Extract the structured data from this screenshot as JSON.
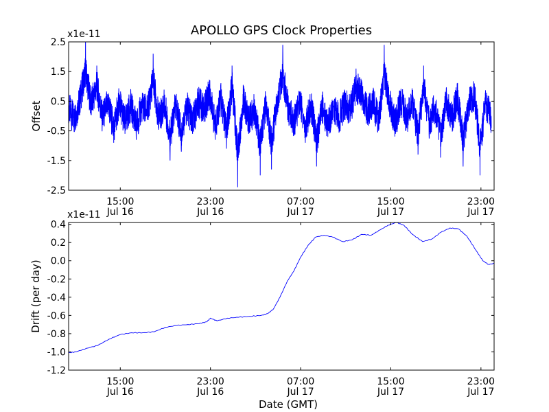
{
  "figure": {
    "title": "APOLLO GPS Clock Properties",
    "line_color": "#0000ff"
  },
  "chart_data": [
    {
      "type": "line",
      "ylabel": "Offset",
      "xlabel": "",
      "y_multiplier": "x1e-11",
      "xlim": [
        "2013-07-16 10:25",
        "2013-07-18 00:10"
      ],
      "ylim": [
        -2.5,
        2.5
      ],
      "x_ticks": [
        {
          "x": "2013-07-16 15:00",
          "time": "15:00",
          "date": "Jul 16"
        },
        {
          "x": "2013-07-16 23:00",
          "time": "23:00",
          "date": "Jul 16"
        },
        {
          "x": "2013-07-17 07:00",
          "time": "07:00",
          "date": "Jul 17"
        },
        {
          "x": "2013-07-17 15:00",
          "time": "15:00",
          "date": "Jul 17"
        },
        {
          "x": "2013-07-17 23:00",
          "time": "23:00",
          "date": "Jul 17"
        }
      ],
      "y_ticks": [
        {
          "value": -2.5,
          "label": "-2.5"
        },
        {
          "value": -1.5,
          "label": "-1.5"
        },
        {
          "value": -0.5,
          "label": "-0.5"
        },
        {
          "value": 0.5,
          "label": "0.5"
        },
        {
          "value": 1.5,
          "label": "1.5"
        },
        {
          "value": 2.5,
          "label": "2.5"
        }
      ],
      "series": [
        {
          "x": [
            "2013-07-16 10:25",
            "2013-07-16 10:55",
            "2013-07-16 11:25",
            "2013-07-16 11:55",
            "2013-07-16 12:25",
            "2013-07-16 12:55",
            "2013-07-16 13:25",
            "2013-07-16 13:55",
            "2013-07-16 14:25",
            "2013-07-16 14:55",
            "2013-07-16 15:25",
            "2013-07-16 15:55",
            "2013-07-16 16:25",
            "2013-07-16 16:55",
            "2013-07-16 17:25",
            "2013-07-16 17:55",
            "2013-07-16 18:25",
            "2013-07-16 18:55",
            "2013-07-16 19:25",
            "2013-07-16 19:55",
            "2013-07-16 20:25",
            "2013-07-16 20:55",
            "2013-07-16 21:25",
            "2013-07-16 21:55",
            "2013-07-16 22:25",
            "2013-07-16 22:55",
            "2013-07-16 23:25",
            "2013-07-16 23:55",
            "2013-07-17 00:25",
            "2013-07-17 00:55",
            "2013-07-17 01:25",
            "2013-07-17 01:55",
            "2013-07-17 02:25",
            "2013-07-17 02:55",
            "2013-07-17 03:25",
            "2013-07-17 03:55",
            "2013-07-17 04:25",
            "2013-07-17 04:55",
            "2013-07-17 05:25",
            "2013-07-17 05:55",
            "2013-07-17 06:25",
            "2013-07-17 06:55",
            "2013-07-17 07:25",
            "2013-07-17 07:55",
            "2013-07-17 08:25",
            "2013-07-17 08:55",
            "2013-07-17 09:25",
            "2013-07-17 09:55",
            "2013-07-17 10:25",
            "2013-07-17 10:55",
            "2013-07-17 11:25",
            "2013-07-17 11:55",
            "2013-07-17 12:25",
            "2013-07-17 12:55",
            "2013-07-17 13:25",
            "2013-07-17 13:55",
            "2013-07-17 14:25",
            "2013-07-17 14:55",
            "2013-07-17 15:25",
            "2013-07-17 15:55",
            "2013-07-17 16:25",
            "2013-07-17 16:55",
            "2013-07-17 17:25",
            "2013-07-17 17:55",
            "2013-07-17 18:25",
            "2013-07-17 18:55",
            "2013-07-17 19:25",
            "2013-07-17 19:55",
            "2013-07-17 20:25",
            "2013-07-17 20:55",
            "2013-07-17 21:25",
            "2013-07-17 21:55",
            "2013-07-17 22:25",
            "2013-07-17 22:55",
            "2013-07-17 23:25",
            "2013-07-17 23:55"
          ],
          "y": [
            0.3,
            -0.4,
            0.8,
            2.6,
            0.5,
            1.7,
            -0.3,
            0.6,
            -0.9,
            0.7,
            -0.6,
            0.5,
            -0.8,
            0.4,
            0.1,
            2.1,
            -0.4,
            0.6,
            -1.5,
            0.5,
            -1.2,
            0.4,
            -0.6,
            0.7,
            0.2,
            1.2,
            -0.8,
            0.9,
            -1.1,
            1.7,
            -2.4,
            0.8,
            -0.5,
            0.3,
            -2.0,
            0.6,
            -1.8,
            0.7,
            2.4,
            0.2,
            -0.6,
            0.8,
            -0.9,
            0.5,
            -1.7,
            0.4,
            -0.7,
            0.3,
            -0.3,
            0.5,
            0.2,
            1.6,
            1.2,
            0.1,
            0.7,
            -0.5,
            2.4,
            0.5,
            -0.6,
            0.8,
            -0.4,
            0.6,
            -1.3,
            1.7,
            -0.7,
            0.4,
            -1.4,
            0.8,
            -0.3,
            0.9,
            -1.7,
            0.6,
            1.1,
            -2.0,
            0.7,
            -0.4
          ]
        }
      ]
    },
    {
      "type": "line",
      "ylabel": "Drift (per day)",
      "xlabel": "Date (GMT)",
      "y_multiplier": "x1e-11",
      "xlim": [
        "2013-07-16 10:25",
        "2013-07-18 00:10"
      ],
      "ylim": [
        -1.2,
        0.42
      ],
      "x_ticks": [
        {
          "x": "2013-07-16 15:00",
          "time": "15:00",
          "date": "Jul 16"
        },
        {
          "x": "2013-07-16 23:00",
          "time": "23:00",
          "date": "Jul 16"
        },
        {
          "x": "2013-07-17 07:00",
          "time": "07:00",
          "date": "Jul 17"
        },
        {
          "x": "2013-07-17 15:00",
          "time": "15:00",
          "date": "Jul 17"
        },
        {
          "x": "2013-07-17 23:00",
          "time": "23:00",
          "date": "Jul 17"
        }
      ],
      "y_ticks": [
        {
          "value": -1.2,
          "label": "-1.2"
        },
        {
          "value": -1.0,
          "label": "-1.0"
        },
        {
          "value": -0.8,
          "label": "-0.8"
        },
        {
          "value": -0.6,
          "label": "-0.6"
        },
        {
          "value": -0.4,
          "label": "-0.4"
        },
        {
          "value": -0.2,
          "label": "-0.2"
        },
        {
          "value": 0.0,
          "label": "0.0"
        },
        {
          "value": 0.2,
          "label": "0.2"
        },
        {
          "value": 0.4,
          "label": "0.4"
        }
      ],
      "series": [
        {
          "x": [
            "2013-07-16 10:25",
            "2013-07-16 11:05",
            "2013-07-16 12:00",
            "2013-07-16 13:00",
            "2013-07-16 14:00",
            "2013-07-16 15:00",
            "2013-07-16 16:00",
            "2013-07-16 17:00",
            "2013-07-16 18:00",
            "2013-07-16 19:00",
            "2013-07-16 20:00",
            "2013-07-16 21:00",
            "2013-07-16 22:00",
            "2013-07-16 22:40",
            "2013-07-16 23:00",
            "2013-07-16 23:35",
            "2013-07-17 00:30",
            "2013-07-17 01:30",
            "2013-07-17 02:30",
            "2013-07-17 03:30",
            "2013-07-17 04:05",
            "2013-07-17 04:35",
            "2013-07-17 05:10",
            "2013-07-17 05:50",
            "2013-07-17 06:25",
            "2013-07-17 07:00",
            "2013-07-17 07:40",
            "2013-07-17 08:20",
            "2013-07-17 09:05",
            "2013-07-17 09:50",
            "2013-07-17 10:45",
            "2013-07-17 11:35",
            "2013-07-17 12:25",
            "2013-07-17 13:15",
            "2013-07-17 14:05",
            "2013-07-17 14:45",
            "2013-07-17 15:30",
            "2013-07-17 16:10",
            "2013-07-17 16:55",
            "2013-07-17 17:50",
            "2013-07-17 18:40",
            "2013-07-17 19:25",
            "2013-07-17 20:15",
            "2013-07-17 21:00",
            "2013-07-17 21:45",
            "2013-07-17 22:35",
            "2013-07-17 23:10",
            "2013-07-17 23:40",
            "2013-07-18 00:10"
          ],
          "y": [
            -1.01,
            -1.0,
            -0.96,
            -0.93,
            -0.86,
            -0.81,
            -0.79,
            -0.79,
            -0.78,
            -0.73,
            -0.71,
            -0.7,
            -0.69,
            -0.67,
            -0.63,
            -0.66,
            -0.63,
            -0.62,
            -0.61,
            -0.6,
            -0.58,
            -0.53,
            -0.4,
            -0.22,
            -0.11,
            0.04,
            0.17,
            0.26,
            0.28,
            0.26,
            0.21,
            0.23,
            0.29,
            0.28,
            0.34,
            0.39,
            0.42,
            0.39,
            0.29,
            0.21,
            0.24,
            0.31,
            0.36,
            0.35,
            0.27,
            0.11,
            0.0,
            -0.04,
            -0.03
          ]
        }
      ]
    }
  ]
}
